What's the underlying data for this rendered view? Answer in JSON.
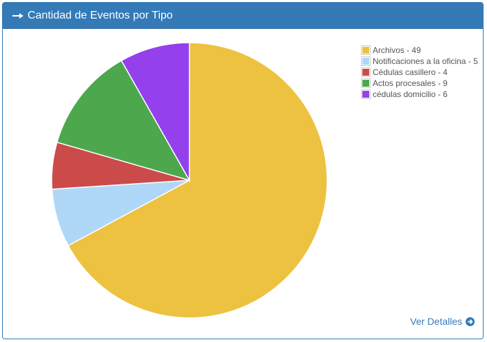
{
  "panel": {
    "title": "Cantidad de Eventos por Tipo",
    "details_label": "Ver Detalles"
  },
  "colors": {
    "header": "#337ab7",
    "link": "#337ab7"
  },
  "icons": {
    "title": "arrow-right-icon",
    "details": "circle-arrow-right-icon"
  },
  "legend": [
    "Archivos - 49",
    "Notificaciones a la oficina - 5",
    "Cédulas casillero - 4",
    "Actos procesales - 9",
    "cédulas domicilio - 6"
  ],
  "chart_data": {
    "type": "pie",
    "title": "",
    "legend_position": "top-right",
    "series": [
      {
        "name": "Archivos",
        "value": 49,
        "color": "#edc240"
      },
      {
        "name": "Notificaciones a la oficina",
        "value": 5,
        "color": "#afd8f8"
      },
      {
        "name": "Cédulas casillero",
        "value": 4,
        "color": "#cb4b4b"
      },
      {
        "name": "Actos procesales",
        "value": 9,
        "color": "#4da74d"
      },
      {
        "name": "cédulas domicilio",
        "value": 6,
        "color": "#9440ed"
      }
    ]
  }
}
